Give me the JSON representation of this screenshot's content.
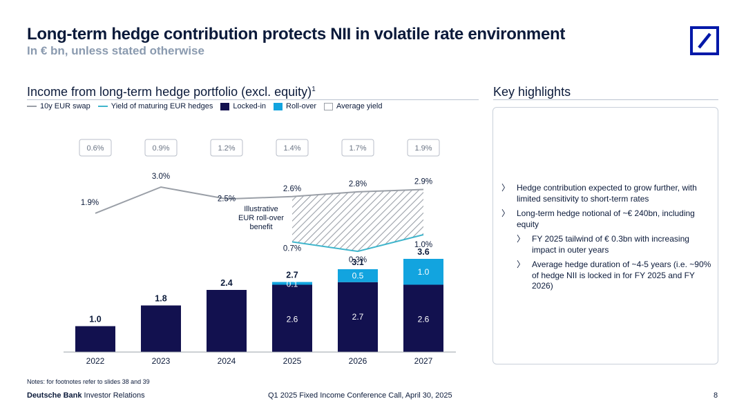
{
  "header": {
    "title": "Long-term hedge contribution protects NII in volatile rate environment",
    "subtitle": "In € bn, unless stated otherwise"
  },
  "chart_section": {
    "title": "Income from long-term hedge portfolio (excl. equity)",
    "footnote_marker": "1"
  },
  "legend": {
    "swap": "10y EUR swap",
    "maturing": "Yield of maturing EUR hedges",
    "locked": "Locked-in",
    "rollover": "Roll-over",
    "avg": "Average yield"
  },
  "colors": {
    "navy": "#12114f",
    "cyan": "#12a4df",
    "swap_line": "#9a9fa7",
    "maturing_line": "#3fb5cc",
    "text": "#0b1a3a",
    "brand": "#0018a8"
  },
  "chart_data": {
    "type": "bar",
    "stacked": true,
    "title": "Income from long-term hedge portfolio (excl. equity)",
    "categories": [
      "2022",
      "2023",
      "2024",
      "2025",
      "2026",
      "2027"
    ],
    "series": [
      {
        "name": "Locked-in",
        "values": [
          1.0,
          1.8,
          2.4,
          2.6,
          2.7,
          2.6
        ],
        "labels": [
          "",
          "",
          "",
          "2.6",
          "2.7",
          "2.6"
        ]
      },
      {
        "name": "Roll-over",
        "values": [
          0,
          0,
          0,
          0.1,
          0.5,
          1.0
        ],
        "labels": [
          "",
          "",
          "",
          "0.1",
          "0.5",
          "1.0"
        ]
      }
    ],
    "totals": [
      1.0,
      1.8,
      2.4,
      2.7,
      3.1,
      3.6
    ],
    "total_labels": [
      "1.0",
      "1.8",
      "2.4",
      "2.7",
      "3.1",
      "3.6"
    ],
    "average_yield": [
      "0.6%",
      "0.9%",
      "1.2%",
      "1.4%",
      "1.7%",
      "1.9%"
    ],
    "lines": [
      {
        "name": "10y EUR swap",
        "values": [
          1.9,
          3.0,
          2.5,
          2.6,
          2.8,
          2.9
        ],
        "labels": [
          "1.9%",
          "3.0%",
          "2.5%",
          "2.6%",
          "2.8%",
          "2.9%"
        ]
      },
      {
        "name": "Yield of maturing EUR hedges",
        "categories": [
          "2025",
          "2026",
          "2027"
        ],
        "values": [
          0.7,
          0.3,
          1.0
        ],
        "labels": [
          "0.7%",
          "0.3%",
          "1.0%"
        ]
      }
    ],
    "annotation": [
      "Illustrative",
      "EUR roll-over",
      "benefit"
    ],
    "ylim": [
      0,
      4
    ],
    "xlabel": "",
    "ylabel": ""
  },
  "highlights": {
    "title": "Key highlights",
    "items": [
      {
        "text": "Hedge contribution expected to grow further, with limited sensitivity to short-term rates",
        "level": 1
      },
      {
        "text": "Long-term hedge notional of ~€ 240bn, including equity",
        "level": 1
      },
      {
        "text": "FY 2025 tailwind of € 0.3bn with increasing impact in outer years",
        "level": 2
      },
      {
        "text": "Average hedge duration of ~4-5 years (i.e. ~90% of hedge NII is locked in for FY 2025 and FY 2026)",
        "level": 2
      }
    ]
  },
  "footer": {
    "notes": "Notes: for footnotes refer to slides 38 and 39",
    "brand_bold": "Deutsche Bank",
    "brand_rest": " Investor Relations",
    "center": "Q1 2025 Fixed Income Conference Call, April 30, 2025",
    "page": "8"
  }
}
